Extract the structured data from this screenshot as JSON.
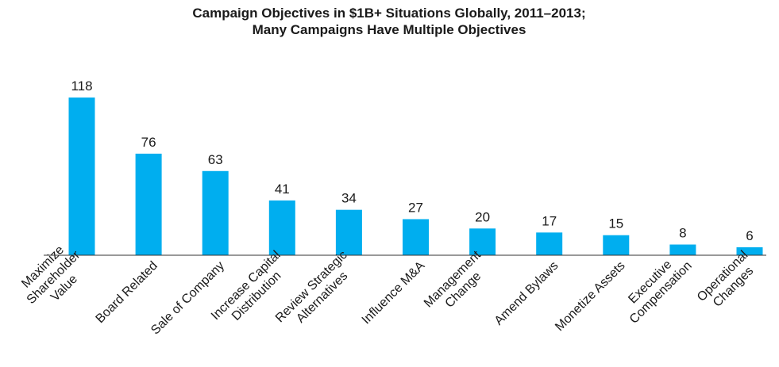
{
  "chart_data": {
    "type": "bar",
    "title": "Campaign Objectives in $1B+ Situations Globally, 2011–2013;\nMany Campaigns Have Multiple Objectives",
    "categories": [
      "Maximize\nShareholder\nValue",
      "Board Related",
      "Sale of Company",
      "Increase Capital\nDistribution",
      "Review Strategic\nAlternatives",
      "Influence M&A",
      "Management\nChange",
      "Amend Bylaws",
      "Monetize Assets",
      "Executive\nCompensation",
      "Operational\nChanges"
    ],
    "values": [
      118,
      76,
      63,
      41,
      34,
      27,
      20,
      17,
      15,
      8,
      6
    ],
    "color": "#00aeef",
    "ylim": [
      0,
      120
    ]
  }
}
